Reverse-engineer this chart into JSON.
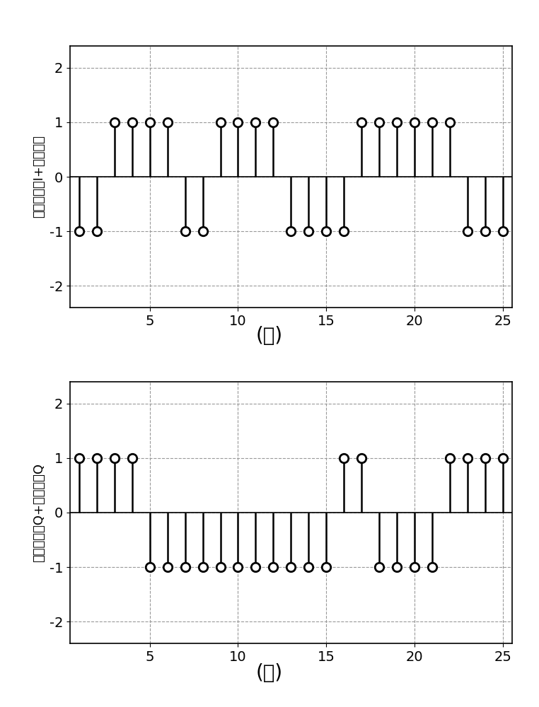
{
  "subplot_a": {
    "x": [
      1,
      2,
      3,
      4,
      5,
      6,
      7,
      8,
      9,
      10,
      11,
      12,
      13,
      14,
      15,
      16,
      17,
      18,
      19,
      20,
      21,
      22,
      23,
      24,
      25
    ],
    "y": [
      -1,
      -1,
      1,
      1,
      1,
      1,
      -1,
      -1,
      1,
      1,
      1,
      1,
      -1,
      -1,
      -1,
      -1,
      1,
      1,
      1,
      1,
      1,
      1,
      -1,
      -1,
      -1
    ],
    "ylabel": "伪随机序列I+导航数据",
    "label": "(ａ)"
  },
  "subplot_b": {
    "x": [
      1,
      2,
      3,
      4,
      5,
      6,
      7,
      8,
      9,
      10,
      11,
      12,
      13,
      14,
      15,
      16,
      17,
      18,
      19,
      20,
      21,
      22,
      23,
      24,
      25
    ],
    "y": [
      1,
      1,
      1,
      1,
      -1,
      -1,
      -1,
      -1,
      -1,
      -1,
      -1,
      -1,
      -1,
      -1,
      -1,
      1,
      1,
      -1,
      -1,
      -1,
      -1,
      1,
      1,
      1,
      1
    ],
    "ylabel": "伪随机序列Q+导航数据Q",
    "label": "(ｂ)"
  },
  "xlim": [
    0.5,
    25.5
  ],
  "ylim": [
    -2.4,
    2.4
  ],
  "xticks": [
    5,
    10,
    15,
    20,
    25
  ],
  "yticks": [
    -2,
    -1,
    0,
    1,
    2
  ],
  "background_color": "#ffffff",
  "stem_color": "#000000",
  "grid_color": "#999999",
  "label_fontsize": 13,
  "tick_fontsize": 14,
  "caption_fontsize": 20
}
